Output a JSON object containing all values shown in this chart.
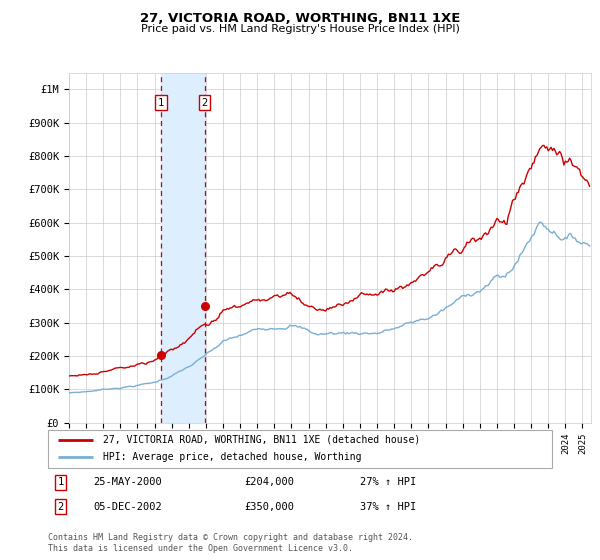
{
  "title": "27, VICTORIA ROAD, WORTHING, BN11 1XE",
  "subtitle": "Price paid vs. HM Land Registry's House Price Index (HPI)",
  "legend_line1": "27, VICTORIA ROAD, WORTHING, BN11 1XE (detached house)",
  "legend_line2": "HPI: Average price, detached house, Worthing",
  "transaction1_date": "25-MAY-2000",
  "transaction1_price": 204000,
  "transaction1_pct": "27% ↑ HPI",
  "transaction2_date": "05-DEC-2002",
  "transaction2_price": 350000,
  "transaction2_pct": "37% ↑ HPI",
  "footer": "Contains HM Land Registry data © Crown copyright and database right 2024.\nThis data is licensed under the Open Government Licence v3.0.",
  "red_color": "#cc0000",
  "blue_color": "#7aafd4",
  "shade_color": "#ddeeff",
  "grid_color": "#cccccc",
  "ylim": [
    0,
    1050000
  ],
  "yticks": [
    0,
    100000,
    200000,
    300000,
    400000,
    500000,
    600000,
    700000,
    800000,
    900000,
    1000000
  ],
  "ytick_labels": [
    "£0",
    "£100K",
    "£200K",
    "£300K",
    "£400K",
    "£500K",
    "£600K",
    "£700K",
    "£800K",
    "£900K",
    "£1M"
  ],
  "xstart": 1995.0,
  "xend": 2025.5,
  "transaction1_x": 2000.38,
  "transaction2_x": 2002.92
}
